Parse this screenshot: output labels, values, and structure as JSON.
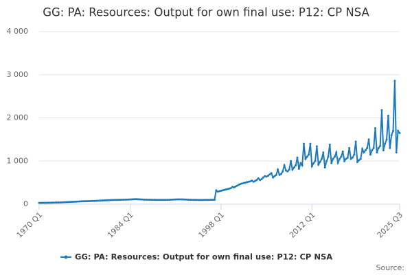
{
  "chart_data": {
    "type": "line",
    "title": "GG: PA: Resources: Output for own final use: P12: CP NSA",
    "source": "Source:",
    "categories": [
      "1970 Q1",
      null,
      null,
      null,
      null,
      null,
      null,
      null,
      null,
      null,
      null,
      null,
      null,
      null,
      null,
      null,
      null,
      null,
      null,
      null,
      null,
      null,
      null,
      null,
      null,
      null,
      null,
      null,
      null,
      null,
      null,
      null,
      null,
      null,
      null,
      null,
      null,
      null,
      null,
      null,
      null,
      null,
      null,
      null,
      null,
      null,
      null,
      null,
      null,
      null,
      null,
      null,
      null,
      null,
      null,
      null,
      "1984 Q1",
      null,
      null,
      null,
      null,
      null,
      null,
      null,
      null,
      null,
      null,
      null,
      null,
      null,
      null,
      null,
      null,
      null,
      null,
      null,
      null,
      null,
      null,
      null,
      null,
      null,
      null,
      null,
      null,
      null,
      null,
      null,
      null,
      null,
      null,
      null,
      null,
      null,
      null,
      null,
      null,
      null,
      null,
      null,
      null,
      null,
      null,
      null,
      null,
      null,
      null,
      null,
      null,
      null,
      null,
      null,
      "1998 Q1",
      null,
      null,
      null,
      null,
      null,
      null,
      null,
      null,
      null,
      null,
      null,
      null,
      null,
      null,
      null,
      null,
      null,
      null,
      null,
      null,
      null,
      null,
      null,
      null,
      null,
      null,
      null,
      null,
      null,
      null,
      null,
      null,
      null,
      null,
      null,
      null,
      null,
      null,
      null,
      null,
      null,
      null,
      null,
      null,
      null,
      null,
      null,
      null,
      null,
      null,
      null,
      null,
      null,
      null,
      null,
      "2012 Q1",
      null,
      null,
      null,
      null,
      null,
      null,
      null,
      null,
      null,
      null,
      null,
      null,
      null,
      null,
      null,
      null,
      null,
      null,
      null,
      null,
      null,
      null,
      null,
      null,
      null,
      null,
      null,
      null,
      null,
      null,
      null,
      null,
      null,
      null,
      null,
      null,
      null,
      null,
      null,
      null,
      null,
      null,
      null,
      null,
      null,
      null,
      null,
      null,
      null,
      null,
      null,
      null,
      null,
      "2025 Q3"
    ],
    "series": [
      {
        "name": "GG: PA: Resources: Output for own final use: P12: CP NSA",
        "color": "#1a7abf",
        "values": [
          30,
          30,
          31,
          31,
          32,
          32,
          33,
          34,
          35,
          36,
          37,
          38,
          39,
          40,
          42,
          43,
          45,
          47,
          49,
          51,
          54,
          56,
          58,
          60,
          62,
          64,
          65,
          67,
          68,
          69,
          70,
          72,
          73,
          75,
          76,
          78,
          80,
          82,
          84,
          86,
          88,
          90,
          92,
          94,
          96,
          97,
          98,
          99,
          100,
          101,
          102,
          103,
          104,
          105,
          106,
          108,
          110,
          112,
          114,
          115,
          116,
          114,
          112,
          110,
          108,
          106,
          105,
          104,
          103,
          102,
          102,
          101,
          100,
          100,
          99,
          99,
          99,
          100,
          100,
          101,
          102,
          104,
          106,
          108,
          110,
          111,
          112,
          112,
          111,
          110,
          108,
          106,
          104,
          102,
          101,
          100,
          99,
          99,
          98,
          98,
          98,
          98,
          99,
          99,
          100,
          100,
          101,
          101,
          101,
          320,
          290,
          300,
          310,
          320,
          330,
          340,
          350,
          360,
          370,
          400,
          390,
          410,
          430,
          450,
          470,
          480,
          490,
          500,
          510,
          520,
          530,
          545,
          520,
          540,
          560,
          600,
          560,
          580,
          620,
          650,
          640,
          660,
          690,
          720,
          620,
          650,
          680,
          800,
          680,
          700,
          760,
          900,
          780,
          760,
          800,
          1000,
          800,
          850,
          900,
          1080,
          820,
          950,
          900,
          1400,
          1050,
          1100,
          1150,
          1400,
          880,
          950,
          1000,
          1340,
          920,
          980,
          1050,
          1200,
          850,
          1000,
          1100,
          1380,
          950,
          1050,
          1100,
          1200,
          960,
          1050,
          1100,
          1220,
          1000,
          1050,
          1080,
          1300,
          1050,
          1080,
          1150,
          1450,
          980,
          1020,
          1050,
          1280,
          1200,
          1250,
          1300,
          1500,
          1150,
          1250,
          1300,
          1760,
          1200,
          1300,
          1350,
          2180,
          1250,
          1400,
          1500,
          2050,
          1300,
          1600,
          1700,
          2860,
          1200,
          1700,
          1650
        ]
      }
    ],
    "ylim": [
      0,
      4000
    ],
    "yticks": [
      0,
      {
        "value": 1000,
        "label": "1 000"
      },
      {
        "value": 2000,
        "label": "2 000"
      },
      {
        "value": 3000,
        "label": "3 000"
      },
      {
        "value": 4000,
        "label": "4 000"
      }
    ],
    "grid": true
  }
}
